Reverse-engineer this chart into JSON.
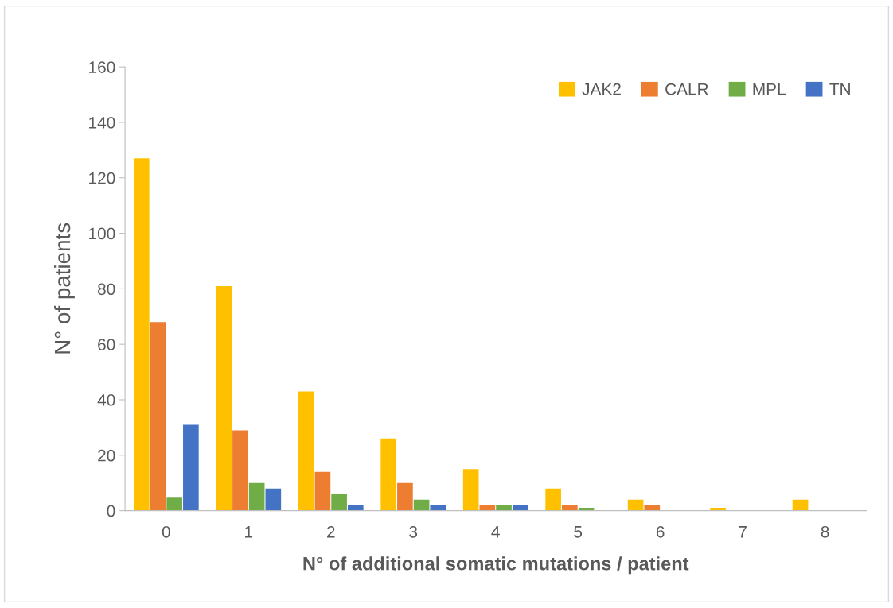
{
  "chart_data": {
    "type": "bar",
    "xlabel": "N° of additional somatic mutations / patient",
    "ylabel": "N° of patients",
    "categories": [
      "0",
      "1",
      "2",
      "3",
      "4",
      "5",
      "6",
      "7",
      "8"
    ],
    "series": [
      {
        "name": "JAK2",
        "color": "#ffc000",
        "values": [
          127,
          81,
          43,
          26,
          15,
          8,
          4,
          1,
          4
        ]
      },
      {
        "name": "CALR",
        "color": "#ed7d31",
        "values": [
          68,
          29,
          14,
          10,
          2,
          2,
          2,
          0,
          0
        ]
      },
      {
        "name": "MPL",
        "color": "#70ad47",
        "values": [
          5,
          10,
          6,
          4,
          2,
          1,
          0,
          0,
          0
        ]
      },
      {
        "name": "TN",
        "color": "#4472c4",
        "values": [
          31,
          8,
          2,
          2,
          2,
          0,
          0,
          0,
          0
        ]
      }
    ],
    "ylim": [
      0,
      160
    ],
    "yticks": [
      0,
      20,
      40,
      60,
      80,
      100,
      120,
      140,
      160
    ],
    "grid": false,
    "legend": "top right"
  }
}
